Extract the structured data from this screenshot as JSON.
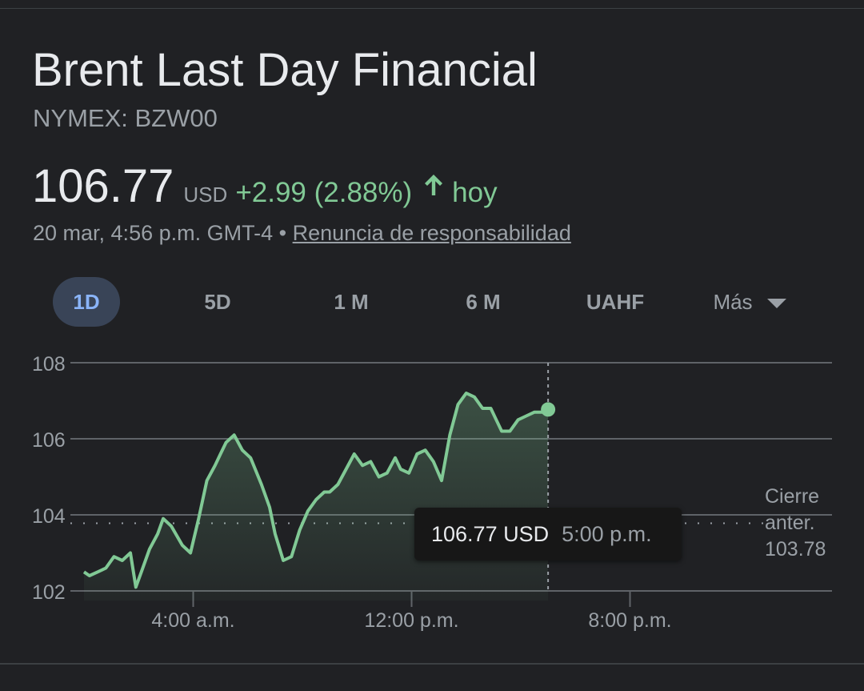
{
  "header": {
    "title": "Brent Last Day Financial",
    "symbol": "NYMEX: BZW00"
  },
  "quote": {
    "price": "106.77",
    "currency": "USD",
    "change": "+2.99 (2.88%)",
    "direction_icon": "arrow-up-icon",
    "period": "hoy",
    "timestamp": "20 mar, 4:56 p.m. GMT-4",
    "separator": "•",
    "disclaimer": "Renuncia de responsabilidad"
  },
  "tabs": {
    "items": [
      "1D",
      "5D",
      "1 M",
      "6 M",
      "UAHF"
    ],
    "active": "1D",
    "more_label": "Más"
  },
  "tooltip": {
    "price": "106.77 USD",
    "time": "5:00 p.m."
  },
  "prev_close": {
    "line1": "Cierre",
    "line2": "anter.",
    "value": "103.78"
  },
  "colors": {
    "background": "#202124",
    "positive": "#81c995",
    "active_tab_bg": "#394457",
    "active_tab_text": "#8ab4f8",
    "secondary_text": "#9aa0a6"
  },
  "chart_data": {
    "type": "area",
    "title": "",
    "xlabel": "",
    "ylabel": "",
    "ylim": [
      102,
      108
    ],
    "yticks": [
      "108",
      "106",
      "104",
      "102"
    ],
    "xticks": [
      {
        "label": "4:00 a.m.",
        "hour": 4
      },
      {
        "label": "12:00 p.m.",
        "hour": 12
      },
      {
        "label": "8:00 p.m.",
        "hour": 20
      }
    ],
    "x_range_hours": [
      0,
      24
    ],
    "previous_close": 103.78,
    "current": {
      "hour": 17.0,
      "value": 106.77
    },
    "series": [
      {
        "color": "#81c995",
        "x": [
          0,
          0.2,
          0.5,
          0.8,
          1.1,
          1.4,
          1.7,
          1.9,
          2.1,
          2.4,
          2.7,
          2.9,
          3.2,
          3.6,
          3.9,
          4.2,
          4.5,
          4.8,
          5.0,
          5.2,
          5.5,
          5.8,
          6.1,
          6.5,
          6.8,
          7.0,
          7.3,
          7.6,
          7.9,
          8.2,
          8.5,
          8.8,
          9.0,
          9.3,
          9.6,
          9.9,
          10.2,
          10.5,
          10.8,
          11.1,
          11.4,
          11.6,
          11.9,
          12.2,
          12.5,
          12.8,
          13.1,
          13.4,
          13.7,
          14.0,
          14.3,
          14.6,
          14.9,
          15.1,
          15.3,
          15.6,
          15.9,
          16.2,
          16.5,
          16.8,
          17.0
        ],
        "values": [
          102.5,
          102.4,
          102.5,
          102.6,
          102.9,
          102.8,
          103.0,
          102.1,
          102.5,
          103.1,
          103.5,
          103.9,
          103.7,
          103.2,
          103.0,
          103.9,
          104.9,
          105.3,
          105.6,
          105.9,
          106.1,
          105.7,
          105.5,
          104.8,
          104.2,
          103.5,
          102.8,
          102.9,
          103.6,
          104.1,
          104.4,
          104.6,
          104.6,
          104.8,
          105.2,
          105.6,
          105.3,
          105.4,
          105.0,
          105.1,
          105.5,
          105.2,
          105.1,
          105.6,
          105.7,
          105.4,
          104.9,
          106.1,
          106.9,
          107.2,
          107.1,
          106.8,
          106.8,
          106.5,
          106.2,
          106.2,
          106.5,
          106.6,
          106.7,
          106.7,
          106.77
        ]
      }
    ],
    "grid": true
  }
}
